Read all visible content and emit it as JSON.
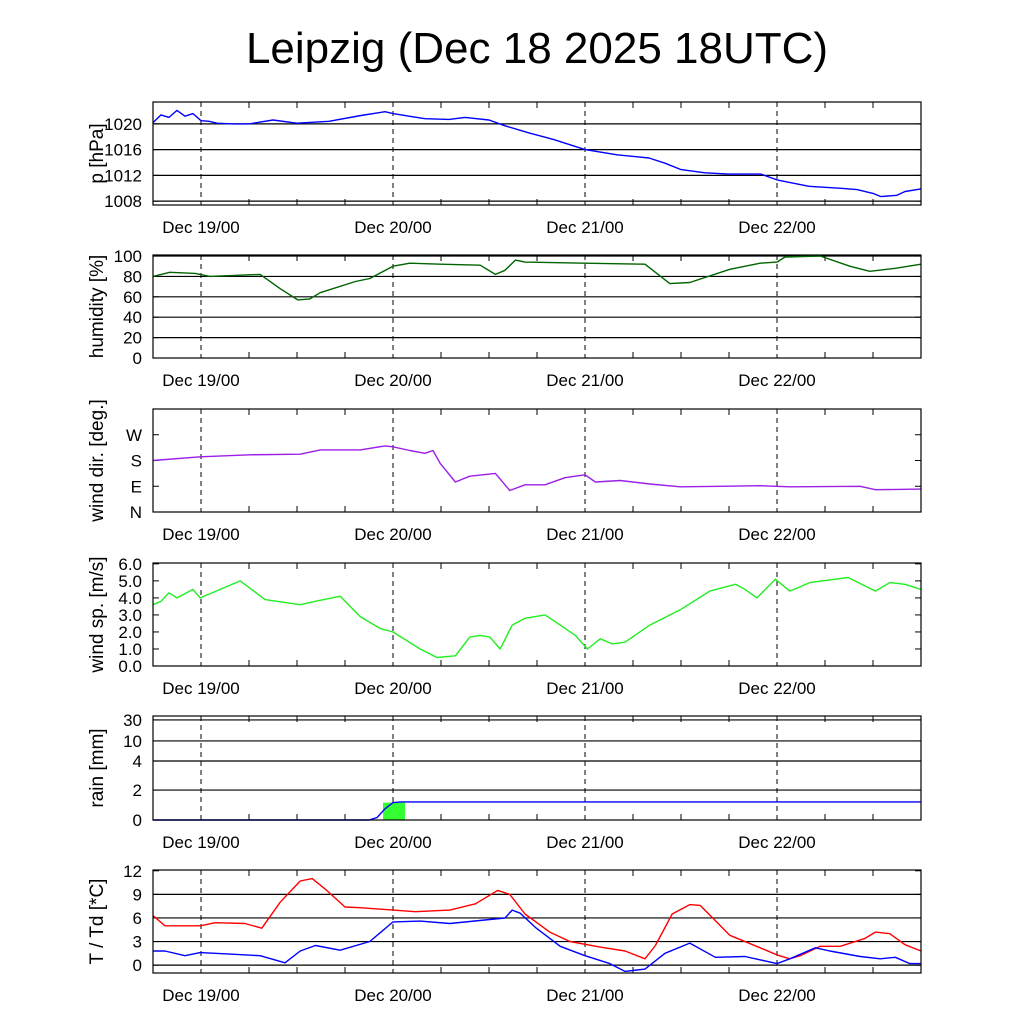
{
  "title": "Leipzig (Dec 18 2025 18UTC)",
  "x_axis": {
    "unit": "hours since Dec 18 2025 18UTC",
    "xlim": [
      0,
      96
    ],
    "major_ticks": [
      6,
      30,
      54,
      78
    ],
    "minor_step": 6,
    "tick_labels": [
      "Dec 19/00",
      "Dec 20/00",
      "Dec 21/00",
      "Dec 22/00"
    ]
  },
  "chart_data": [
    {
      "type": "line",
      "ylabel": "p [hPa]",
      "ylim": [
        1007.4,
        1023.4
      ],
      "grid": true,
      "yticks": [
        1008,
        1012,
        1016,
        1020
      ],
      "ytick_labels": [
        "1008",
        "1012",
        "1016",
        "1020"
      ],
      "series": [
        {
          "name": "pressure",
          "color": "#0000ff",
          "x": [
            0,
            1,
            2,
            3,
            4,
            5,
            6,
            7,
            8,
            10,
            12,
            15,
            18,
            22,
            26,
            29,
            30,
            32,
            34,
            37,
            39,
            42,
            44,
            47,
            50,
            54,
            58,
            62,
            64,
            66,
            69,
            72,
            76,
            78,
            82,
            86,
            88,
            90,
            91,
            93,
            94,
            96
          ],
          "y": [
            1020.2,
            1021.4,
            1021,
            1022.1,
            1021.2,
            1021.6,
            1020.5,
            1020.4,
            1020.1,
            1020,
            1020,
            1020.6,
            1020.1,
            1020.4,
            1021.3,
            1021.9,
            1021.6,
            1021.2,
            1020.8,
            1020.7,
            1021,
            1020.6,
            1019.7,
            1018.6,
            1017.6,
            1016,
            1015.2,
            1014.7,
            1013.9,
            1012.9,
            1012.4,
            1012.2,
            1012.2,
            1011.3,
            1010.3,
            1010,
            1009.8,
            1009.2,
            1008.7,
            1008.9,
            1009.5,
            1009.9
          ]
        }
      ]
    },
    {
      "type": "line",
      "ylabel": "humidity [%]",
      "ylim": [
        0,
        101
      ],
      "grid": true,
      "yticks": [
        0,
        20,
        40,
        60,
        80,
        100
      ],
      "ytick_labels": [
        "0",
        "20",
        "40",
        "60",
        "80",
        "100"
      ],
      "series": [
        {
          "name": "humidity",
          "color": "#006400",
          "x": [
            0,
            2.1,
            5.3,
            7.1,
            13.4,
            15.9,
            18.1,
            19.6,
            20.9,
            25.3,
            27.1,
            30,
            32.1,
            35.9,
            40.9,
            42.8,
            44,
            45.3,
            46.5,
            54,
            61.5,
            64.6,
            67.1,
            72.1,
            75.9,
            78,
            79,
            83.4,
            87.1,
            89.6,
            92.8,
            96
          ],
          "y": [
            80,
            84,
            83,
            80,
            82,
            68,
            57,
            58,
            64,
            75,
            78,
            90,
            93,
            92,
            91,
            82,
            86,
            96,
            94,
            93,
            92,
            73,
            74,
            87,
            93,
            94,
            99,
            100,
            90,
            85,
            88,
            92
          ]
        }
      ]
    },
    {
      "type": "line",
      "ylabel": "wind dir. [deg.]",
      "ylim": [
        0,
        360
      ],
      "grid": false,
      "yticks": [
        0,
        90,
        180,
        270
      ],
      "ytick_labels": [
        "N",
        "E",
        "S",
        "W"
      ],
      "series": [
        {
          "name": "wind direction",
          "color": "#9b1fe8",
          "x": [
            0,
            5.9,
            12.1,
            18.4,
            20.9,
            25.9,
            29,
            30,
            32.1,
            34,
            35,
            35.9,
            37.8,
            39.6,
            42.8,
            44.6,
            46.5,
            49,
            51.5,
            54,
            55.3,
            58.4,
            62.1,
            65.9,
            70.9,
            75.9,
            79.6,
            88.4,
            90.3,
            96
          ],
          "y": [
            180,
            193,
            200,
            202,
            217,
            217,
            231,
            228,
            215,
            205,
            215,
            170,
            105,
            125,
            135,
            75,
            95,
            95,
            120,
            130,
            105,
            110,
            98,
            88,
            90,
            92,
            88,
            90,
            78,
            80
          ]
        }
      ]
    },
    {
      "type": "line",
      "ylabel": "wind sp. [m/s]",
      "ylim": [
        0,
        6.05
      ],
      "grid": false,
      "yticks": [
        0,
        1,
        2,
        3,
        4,
        5,
        6
      ],
      "ytick_labels": [
        "0.0",
        "1.0",
        "2.0",
        "3.0",
        "4.0",
        "5.0",
        "6.0"
      ],
      "series": [
        {
          "name": "wind speed",
          "color": "#22ee22",
          "x": [
            0,
            1,
            2,
            3,
            5,
            5.9,
            10.9,
            14,
            18.4,
            20.3,
            23.4,
            25.9,
            28.4,
            30,
            33.4,
            35.5,
            37.8,
            39.6,
            40.9,
            42.1,
            43.4,
            44.9,
            46.5,
            49,
            50.9,
            52.8,
            54.3,
            55.9,
            57.4,
            59,
            62.1,
            65.9,
            69.6,
            72.8,
            74,
            75.5,
            77.8,
            79.6,
            82.1,
            86.9,
            90.3,
            92.1,
            94,
            96
          ],
          "y": [
            3.6,
            3.8,
            4.3,
            4.0,
            4.5,
            4.0,
            5.0,
            3.9,
            3.6,
            3.8,
            4.1,
            2.9,
            2.2,
            2.0,
            1.0,
            0.5,
            0.6,
            1.7,
            1.8,
            1.7,
            1.0,
            2.4,
            2.8,
            3.0,
            2.4,
            1.8,
            1.0,
            1.6,
            1.3,
            1.4,
            2.4,
            3.3,
            4.4,
            4.8,
            4.5,
            4.0,
            5.1,
            4.4,
            4.9,
            5.2,
            4.4,
            4.9,
            4.8,
            4.5
          ]
        }
      ]
    },
    {
      "type": "bar+line",
      "ylabel": "rain [mm]",
      "ylim": [
        0,
        40
      ],
      "grid": true,
      "scale": "nonlinear",
      "yticks": [
        0,
        2,
        4,
        10,
        30
      ],
      "ytick_labels": [
        "0",
        "2",
        "4",
        "10",
        "30"
      ],
      "bars": {
        "name": "precipitation",
        "color": "#33ff33",
        "x0": [
          28.75
        ],
        "x1": [
          31.5
        ],
        "y": [
          1.1
        ]
      },
      "series": [
        {
          "name": "accumulated precipitation",
          "color": "#0000ff",
          "x": [
            0,
            27,
            28,
            29,
            30,
            31,
            33,
            96
          ],
          "y": [
            0,
            0,
            0.15,
            0.7,
            1.1,
            1.15,
            1.15,
            1.15
          ]
        }
      ]
    },
    {
      "type": "line",
      "ylabel": "T / Td [*C]",
      "ylim": [
        -1.0,
        12.1
      ],
      "grid": true,
      "yticks": [
        0,
        3,
        6,
        9,
        12
      ],
      "ytick_labels": [
        "0",
        "3",
        "6",
        "9",
        "12"
      ],
      "series": [
        {
          "name": "temperature",
          "color": "#ff0000",
          "x": [
            0,
            1.5,
            5.9,
            7.8,
            11.5,
            13.6,
            15.9,
            18.4,
            19.9,
            21.5,
            24,
            25.9,
            30,
            32.8,
            37.1,
            40.3,
            43.1,
            44.6,
            46.5,
            49.6,
            52.1,
            55.9,
            59,
            61.5,
            62.8,
            64.9,
            67.1,
            68.4,
            72.1,
            75.9,
            78,
            79.6,
            80.9,
            83.4,
            85.9,
            89,
            90.3,
            92.1,
            94,
            96
          ],
          "y": [
            6.3,
            5.0,
            5.0,
            5.4,
            5.3,
            4.7,
            8.0,
            10.7,
            11.0,
            9.7,
            7.4,
            7.3,
            7.0,
            6.8,
            7.0,
            7.8,
            9.5,
            9.0,
            6.5,
            4.2,
            3.0,
            2.3,
            1.8,
            0.8,
            2.5,
            6.5,
            7.7,
            7.6,
            3.8,
            2.2,
            1.3,
            0.8,
            1.2,
            2.4,
            2.4,
            3.4,
            4.2,
            4.0,
            2.6,
            1.8
          ]
        },
        {
          "name": "dew point",
          "color": "#0000ff",
          "x": [
            0,
            1.5,
            4,
            5.9,
            9.6,
            13.4,
            16.5,
            18.4,
            20.3,
            23.4,
            27.1,
            30,
            33.4,
            37.1,
            42.1,
            44,
            44.9,
            45.9,
            47.8,
            50.9,
            54,
            57.1,
            59,
            61.5,
            64,
            67.1,
            70.3,
            74,
            78,
            79.6,
            82.8,
            84.6,
            88.4,
            90.9,
            92.8,
            94.6,
            96
          ],
          "y": [
            1.8,
            1.8,
            1.2,
            1.6,
            1.4,
            1.2,
            0.3,
            1.8,
            2.5,
            1.9,
            3.0,
            5.5,
            5.6,
            5.3,
            5.8,
            6.0,
            7.0,
            6.6,
            4.8,
            2.4,
            1.2,
            0.2,
            -0.8,
            -0.5,
            1.5,
            2.8,
            1.0,
            1.1,
            0.2,
            0.8,
            2.2,
            1.8,
            1.1,
            0.8,
            1.0,
            0.2,
            0.2
          ]
        }
      ]
    }
  ]
}
